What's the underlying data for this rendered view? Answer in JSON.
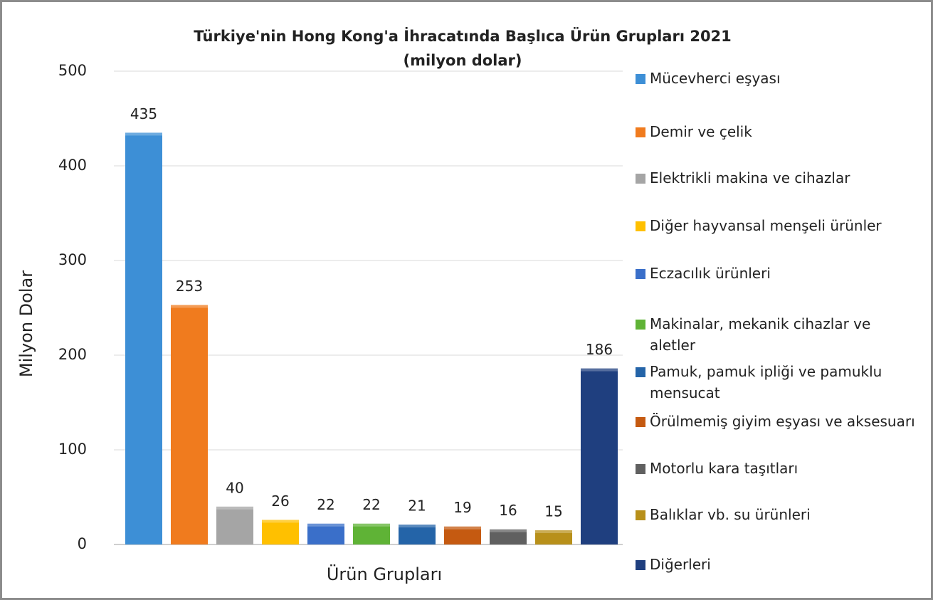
{
  "chart_data": {
    "type": "bar",
    "title": "Türkiye'nin Hong Kong'a İhracatında Başlıca Ürün Grupları 2021",
    "subtitle": "(milyon dolar)",
    "x_label": "Ürün Grupları",
    "y_label": "Milyon Dolar",
    "categories": [
      "Mücevherci eşyası",
      "Demir ve çelik",
      "Elektrikli makina ve cihazlar",
      "Diğer hayvansal menşeli ürünler",
      "Eczacılık ürünleri",
      "Makinalar, mekanik cihazlar ve aletler",
      "Pamuk, pamuk ipliği ve pamuklu mensucat",
      "Örülmemiş giyim eşyası ve aksesuarı",
      "Motorlu kara taşıtları",
      "Balıklar vb. su ürünleri",
      "Diğerleri"
    ],
    "values": [
      435,
      253,
      40,
      26,
      22,
      22,
      21,
      19,
      16,
      15,
      186
    ],
    "colors": [
      "#3d8fd6",
      "#f07b1e",
      "#a5a5a5",
      "#ffc000",
      "#3a6fc9",
      "#5fb336",
      "#2464a8",
      "#c55a11",
      "#606060",
      "#b8901a",
      "#1f3f7f"
    ],
    "ylim": [
      0,
      500
    ],
    "yticks": [
      0,
      100,
      200,
      300,
      400,
      500
    ],
    "grid": true,
    "legend": "right"
  }
}
